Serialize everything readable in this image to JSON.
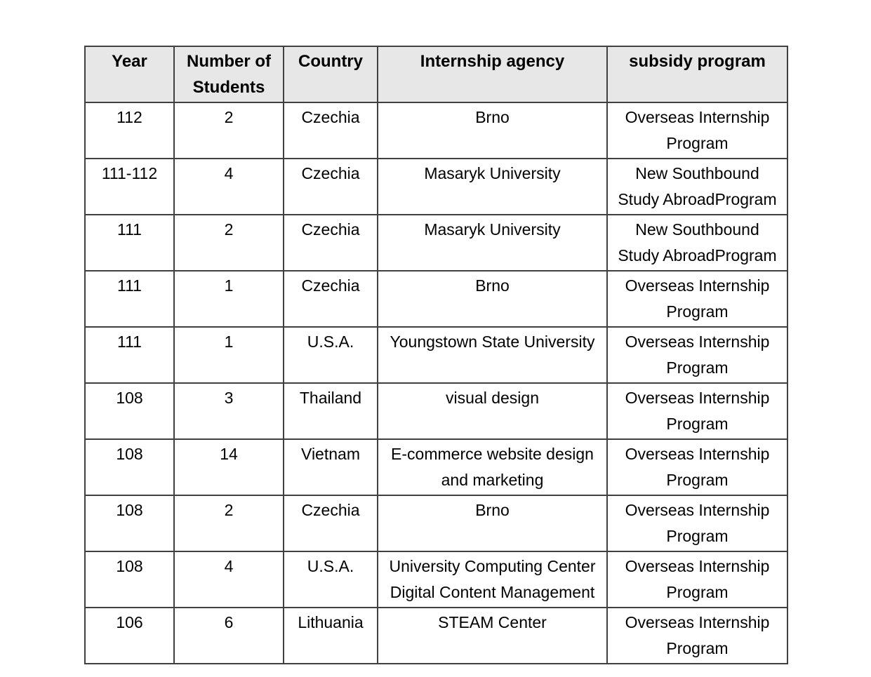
{
  "colors": {
    "page_background": "#ffffff",
    "header_background": "#e7e7e7",
    "grid_border": "#404040",
    "text": "#000000"
  },
  "table": {
    "headers": [
      "Year",
      "Number of\nStudents",
      "Country",
      "Internship agency",
      "subsidy program"
    ],
    "rows": [
      [
        "112",
        "2",
        "Czechia",
        "Brno",
        "Overseas Internship\nProgram"
      ],
      [
        "111-112",
        "4",
        "Czechia",
        "Masaryk University",
        "New Southbound\nStudy AbroadProgram"
      ],
      [
        "111",
        "2",
        "Czechia",
        "Masaryk University",
        "New Southbound\nStudy AbroadProgram"
      ],
      [
        "111",
        "1",
        "Czechia",
        "Brno",
        "Overseas Internship\nProgram"
      ],
      [
        "111",
        "1",
        "U.S.A.",
        "Youngstown State University",
        "Overseas Internship\nProgram"
      ],
      [
        "108",
        "3",
        "Thailand",
        "visual design",
        "Overseas Internship\nProgram"
      ],
      [
        "108",
        "14",
        "Vietnam",
        "E-commerce website design\nand marketing",
        "Overseas Internship\nProgram"
      ],
      [
        "108",
        "2",
        "Czechia",
        "Brno",
        "Overseas Internship\nProgram"
      ],
      [
        "108",
        "4",
        "U.S.A.",
        "University Computing Center\nDigital Content Management",
        "Overseas Internship\nProgram"
      ],
      [
        "106",
        "6",
        "Lithuania",
        "STEAM Center",
        "Overseas Internship\nProgram"
      ]
    ]
  }
}
